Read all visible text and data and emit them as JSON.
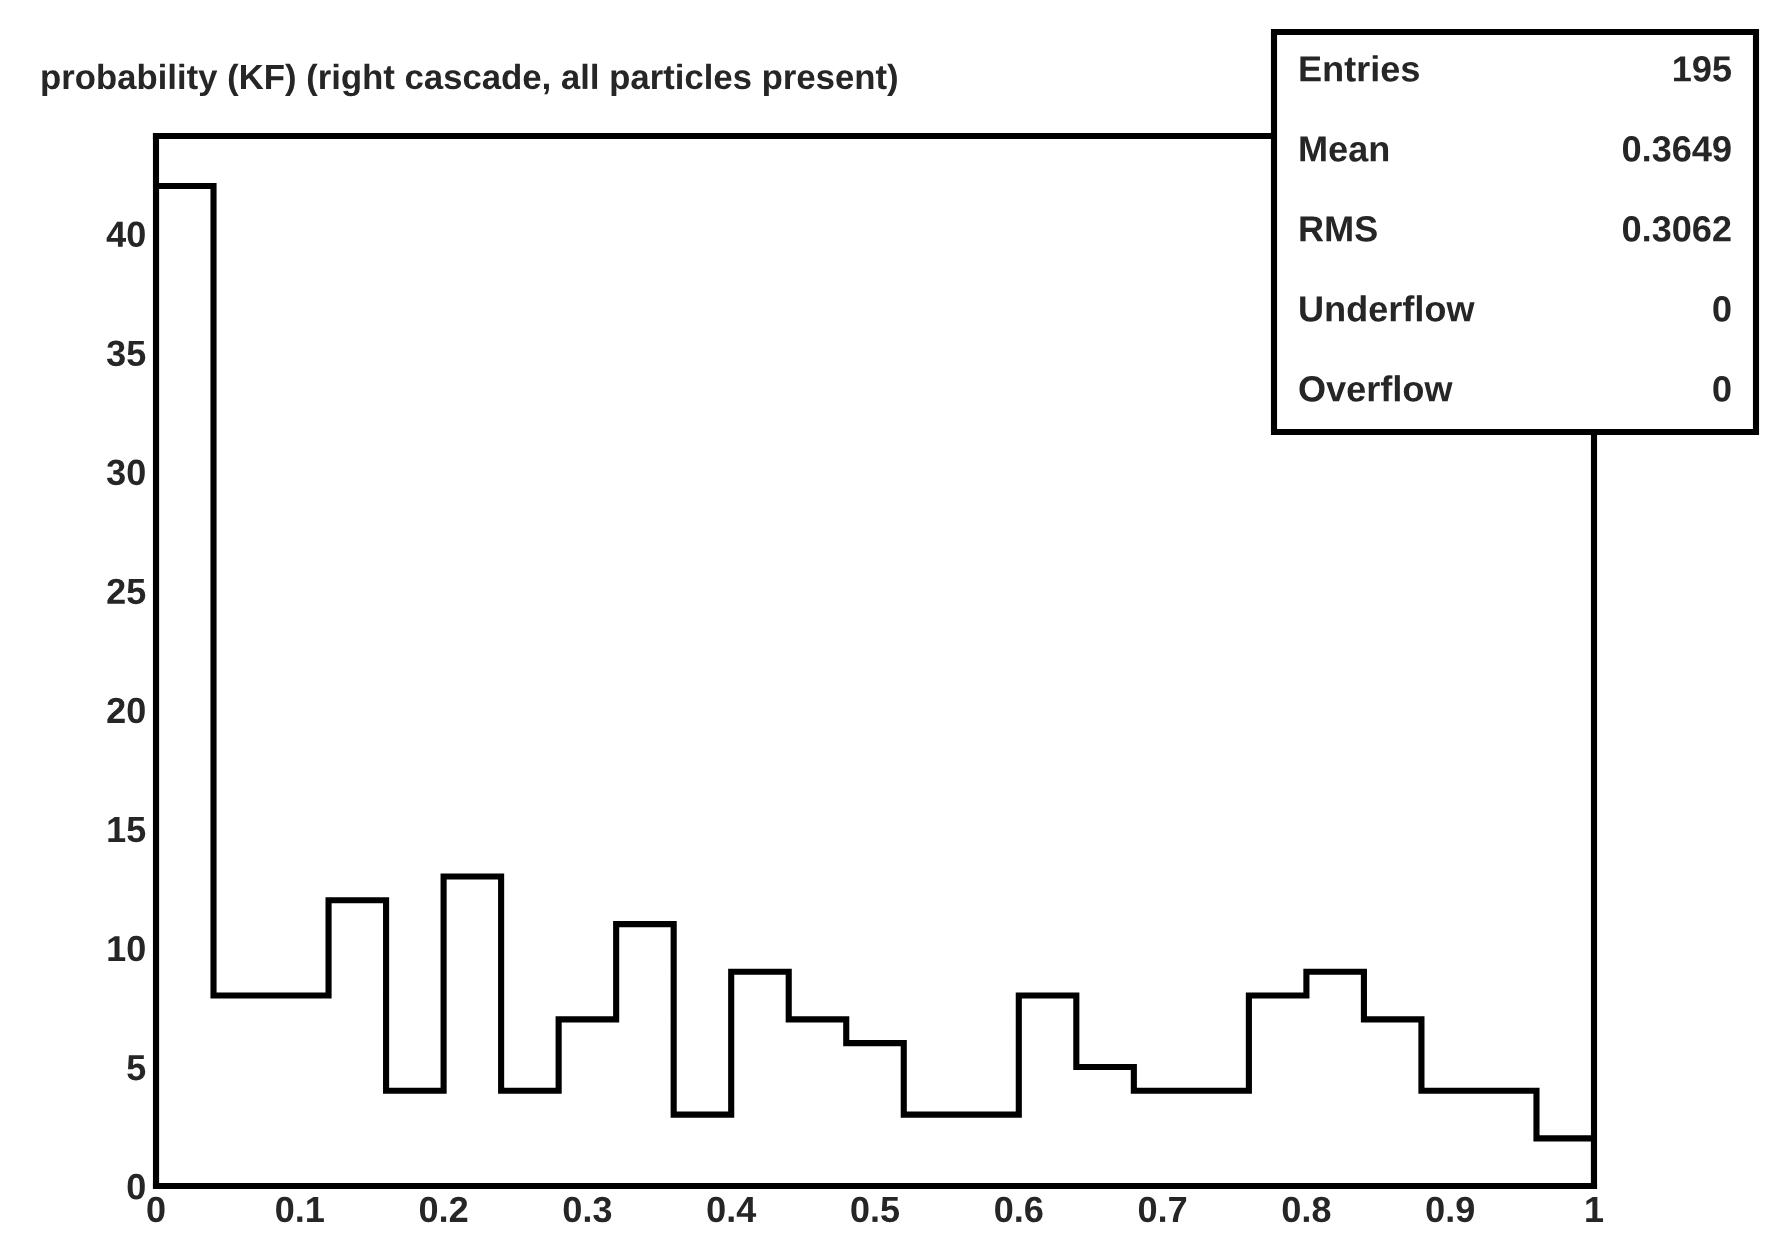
{
  "chart_data": {
    "type": "histogram",
    "title": "probability (KF) (right cascade, all particles present)",
    "bins": [
      0,
      0.04,
      0.08,
      0.12,
      0.16,
      0.2,
      0.24,
      0.28,
      0.32,
      0.36,
      0.4,
      0.44,
      0.48,
      0.52,
      0.56,
      0.6,
      0.64,
      0.68,
      0.72,
      0.76,
      0.8,
      0.84,
      0.88,
      0.92,
      0.96,
      1
    ],
    "values": [
      42,
      8,
      8,
      12,
      4,
      13,
      4,
      7,
      11,
      3,
      9,
      7,
      6,
      3,
      3,
      8,
      5,
      4,
      4,
      8,
      9,
      7,
      4,
      4,
      2
    ],
    "color": "#000000",
    "xlim": [
      0,
      1
    ],
    "xticks": [
      0,
      0.1,
      0.2,
      0.3,
      0.4,
      0.5,
      0.6,
      0.7,
      0.8,
      0.9,
      1
    ],
    "ylim": [
      0,
      44.1
    ],
    "yticks": [
      0,
      5,
      10,
      15,
      20,
      25,
      30,
      35,
      40
    ],
    "grid": false,
    "legend": false,
    "annotations": [
      "Entries",
      "195",
      "Mean",
      "0.3649",
      "RMS",
      "0.3062",
      "Underflow",
      "0",
      "Overflow",
      "0"
    ]
  }
}
